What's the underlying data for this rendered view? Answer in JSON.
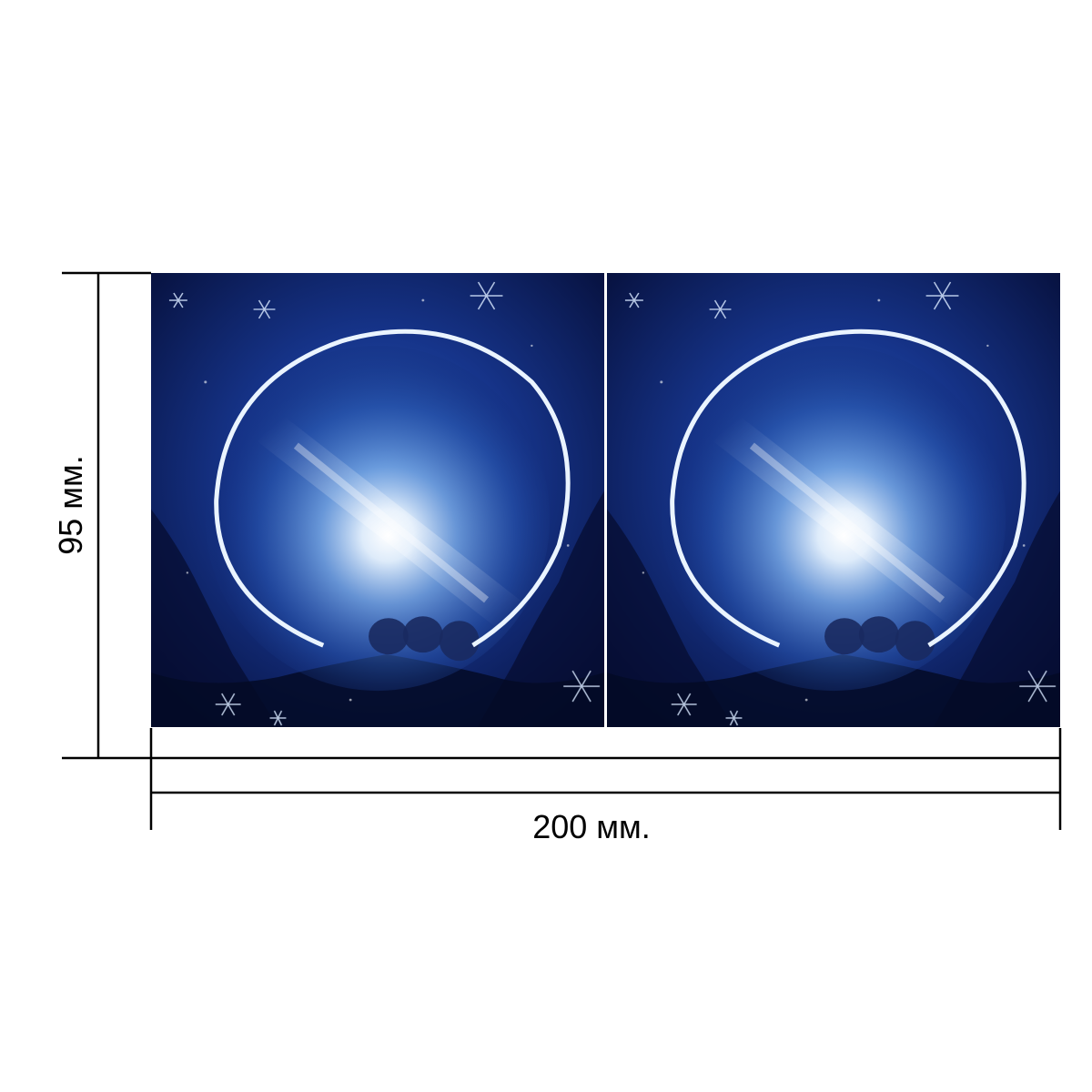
{
  "dimensions": {
    "width_label": "200 мм.",
    "height_label": "95 мм.",
    "width_value_mm": 200,
    "height_value_mm": 95
  },
  "artwork": {
    "panels": [
      {
        "name": "left",
        "description_icon": "frost-circle-art"
      },
      {
        "name": "right",
        "description_icon": "frost-circle-art"
      }
    ]
  },
  "colors": {
    "line": "#000000",
    "background": "#ffffff",
    "night_blue": "#0d1f5e",
    "deep_blue": "#06103a",
    "glow_white": "#eef6ff",
    "ice_blue": "#6fa8e8"
  }
}
